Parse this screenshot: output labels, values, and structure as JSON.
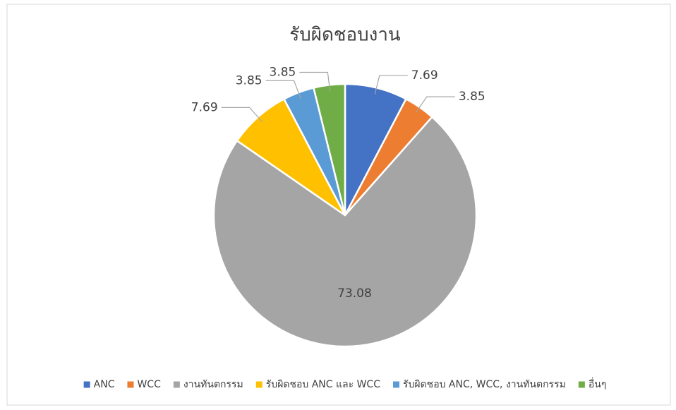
{
  "chart_data": {
    "type": "pie",
    "title": "รับผิดชอบงาน",
    "categories": [
      "ANC",
      "WCC",
      "งานทันตกรรม",
      "รับผิดชอบ ANC และ WCC",
      "รับผิดชอบ ANC, WCC, งานทันตกรรม",
      "อื่นๆ"
    ],
    "values": [
      7.69,
      3.85,
      73.08,
      7.69,
      3.85,
      3.85
    ],
    "colors": [
      "#4472c4",
      "#ed7d31",
      "#a5a5a5",
      "#ffc000",
      "#5b9bd5",
      "#70ad47"
    ],
    "legend": "bottom"
  }
}
